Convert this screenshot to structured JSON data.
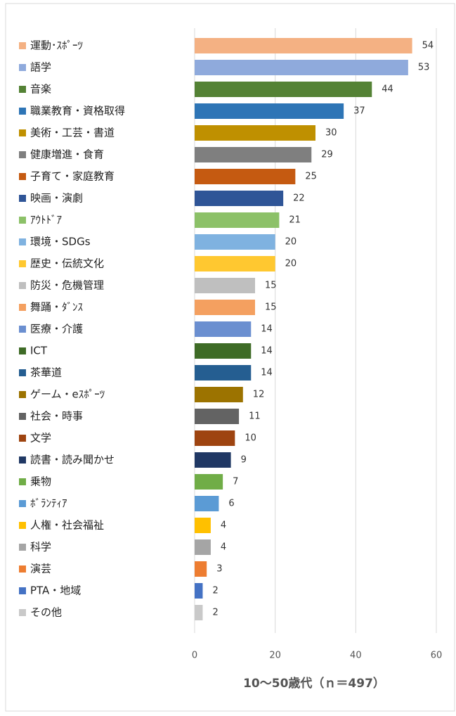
{
  "chart_data": {
    "type": "bar",
    "orientation": "horizontal",
    "title": "10～50歳代（ｎ＝497）",
    "categories": [
      "運動･ｽﾎﾟｰﾂ",
      "語学",
      "音楽",
      "職業教育・資格取得",
      "美術・工芸・書道",
      "健康増進・食育",
      "子育て・家庭教育",
      "映画・演劇",
      "ｱｳﾄﾄﾞｱ",
      "環境・SDGs",
      "歴史・伝統文化",
      "防災・危機管理",
      "舞踊・ﾀﾞﾝｽ",
      "医療・介護",
      "ICT",
      "茶華道",
      "ゲーム・eｽﾎﾟｰﾂ",
      "社会・時事",
      "文学",
      "読書・読み聞かせ",
      "乗物",
      "ﾎﾞﾗﾝﾃｨｱ",
      "人権・社会福祉",
      "科学",
      "演芸",
      "PTA・地域",
      "その他"
    ],
    "values": [
      54,
      53,
      44,
      37,
      30,
      29,
      25,
      22,
      21,
      20,
      20,
      15,
      15,
      14,
      14,
      14,
      12,
      11,
      10,
      9,
      7,
      6,
      4,
      4,
      3,
      2,
      2
    ],
    "colors": [
      "#f4b183",
      "#8faadc",
      "#548235",
      "#2e75b6",
      "#bf9000",
      "#7f7f7f",
      "#c55a11",
      "#2f5597",
      "#8cc168",
      "#7fb2e0",
      "#ffc830",
      "#bfbfbf",
      "#f4a060",
      "#6b8fd0",
      "#3e6b26",
      "#255e91",
      "#9c7300",
      "#636363",
      "#9e4410",
      "#203864",
      "#70ad47",
      "#5b9bd5",
      "#ffc000",
      "#a5a5a5",
      "#ed7d31",
      "#4472c4",
      "#c9c9c9"
    ],
    "xlim": [
      0,
      60
    ],
    "xticks": [
      0,
      20,
      40,
      60
    ],
    "grid": true,
    "legend": "left"
  }
}
